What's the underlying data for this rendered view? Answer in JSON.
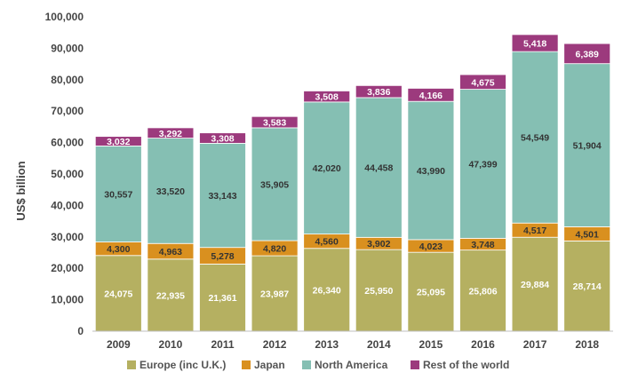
{
  "chart_data": {
    "type": "bar",
    "stacked": true,
    "title": "",
    "xlabel": "",
    "ylabel": "US$ billion",
    "ylim": [
      0,
      100000
    ],
    "yticks": [
      0,
      10000,
      20000,
      30000,
      40000,
      50000,
      60000,
      70000,
      80000,
      90000,
      100000
    ],
    "ytick_labels": [
      "0",
      "10,000",
      "20,000",
      "30,000",
      "40,000",
      "50,000",
      "60,000",
      "70,000",
      "80,000",
      "90,000",
      "100,000"
    ],
    "categories": [
      "2009",
      "2010",
      "2011",
      "2012",
      "2013",
      "2014",
      "2015",
      "2016",
      "2017",
      "2018"
    ],
    "series": [
      {
        "name": "Europe (inc U.K.)",
        "color": "#b5b061",
        "label_color": "#ffffff",
        "values": [
          24075,
          22935,
          21361,
          23987,
          26340,
          25950,
          25095,
          25806,
          29884,
          28714
        ],
        "labels": [
          "24,075",
          "22,935",
          "21,361",
          "23,987",
          "26,340",
          "25,950",
          "25,095",
          "25,806",
          "29,884",
          "28,714"
        ]
      },
      {
        "name": "Japan",
        "color": "#d9901f",
        "label_color": "#333333",
        "values": [
          4300,
          4963,
          5278,
          4820,
          4560,
          3902,
          4023,
          3748,
          4517,
          4501
        ],
        "labels": [
          "4,300",
          "4,963",
          "5,278",
          "4,820",
          "4,560",
          "3,902",
          "4,023",
          "3,748",
          "4,517",
          "4,501"
        ]
      },
      {
        "name": "North America",
        "color": "#85bfb3",
        "label_color": "#333333",
        "values": [
          30557,
          33520,
          33143,
          35905,
          42020,
          44458,
          43990,
          47399,
          54549,
          51904
        ],
        "labels": [
          "30,557",
          "33,520",
          "33,143",
          "35,905",
          "42,020",
          "44,458",
          "43,990",
          "47,399",
          "54,549",
          "51,904"
        ]
      },
      {
        "name": "Rest of the world",
        "color": "#9c3a7d",
        "label_color": "#ffffff",
        "values": [
          3032,
          3292,
          3308,
          3583,
          3508,
          3836,
          4166,
          4675,
          5418,
          6389
        ],
        "labels": [
          "3,032",
          "3,292",
          "3,308",
          "3,583",
          "3,508",
          "3,836",
          "4,166",
          "4,675",
          "5,418",
          "6,389"
        ]
      }
    ],
    "legend_position": "bottom",
    "grid": false
  }
}
